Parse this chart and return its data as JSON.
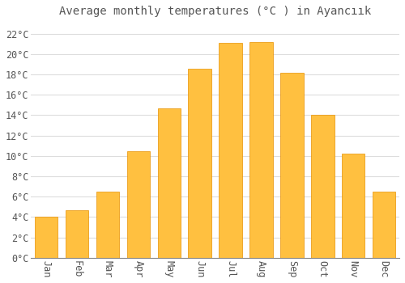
{
  "title": "Average monthly temperatures (°C ) in Ayancıık",
  "months": [
    "Jan",
    "Feb",
    "Mar",
    "Apr",
    "May",
    "Jun",
    "Jul",
    "Aug",
    "Sep",
    "Oct",
    "Nov",
    "Dec"
  ],
  "temperatures": [
    4.0,
    4.7,
    6.5,
    10.5,
    14.7,
    18.6,
    21.1,
    21.2,
    18.2,
    14.0,
    10.2,
    6.5
  ],
  "bar_color": "#FFC040",
  "bar_edge_color": "#E89000",
  "background_color": "#FFFFFF",
  "grid_color": "#DDDDDD",
  "text_color": "#555555",
  "ylim": [
    0,
    23
  ],
  "yticks": [
    0,
    2,
    4,
    6,
    8,
    10,
    12,
    14,
    16,
    18,
    20,
    22
  ],
  "title_fontsize": 10,
  "tick_fontsize": 8.5,
  "bar_width": 0.75
}
